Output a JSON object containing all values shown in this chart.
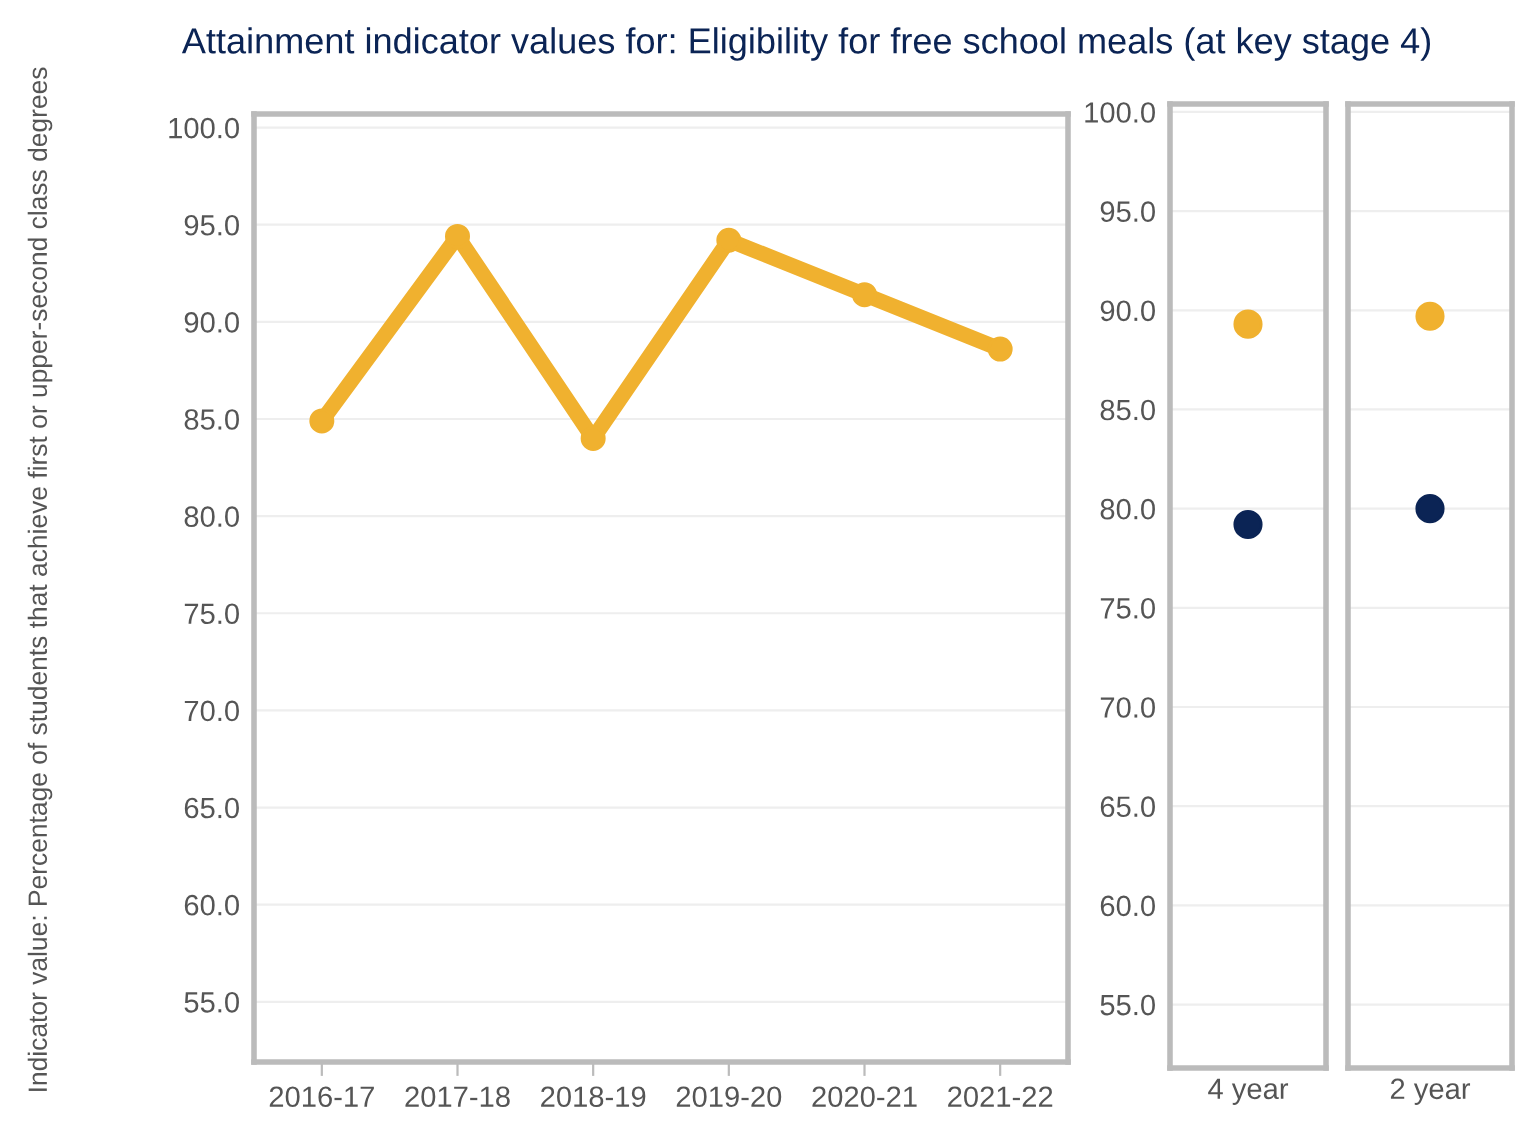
{
  "chart_data": [
    {
      "type": "line",
      "title": "Attainment indicator values for: Eligibility for free school meals (at key stage 4)",
      "ylabel": "Indicator value: Percentage of students that achieve first or upper-second class degrees",
      "categories": [
        "2016-17",
        "2017-18",
        "2018-19",
        "2019-20",
        "2020-21",
        "2021-22"
      ],
      "series": [
        {
          "color": "#f0b12f",
          "values": [
            84.9,
            94.4,
            84.0,
            94.2,
            91.4,
            88.6
          ]
        }
      ],
      "marker": "circle",
      "line_style": "solid",
      "grid": "y",
      "legend": false,
      "ylim": [
        51.9,
        100.7
      ],
      "yticks": [
        {
          "value": 55,
          "label": "55.0"
        },
        {
          "value": 60,
          "label": "60.0"
        },
        {
          "value": 65,
          "label": "65.0"
        },
        {
          "value": 70,
          "label": "70.0"
        },
        {
          "value": 75,
          "label": "75.0"
        },
        {
          "value": 80,
          "label": "80.0"
        },
        {
          "value": 85,
          "label": "85.0"
        },
        {
          "value": 90,
          "label": "90.0"
        },
        {
          "value": 95,
          "label": "95.0"
        },
        {
          "value": 100,
          "label": "100.0"
        }
      ]
    },
    {
      "type": "scatter",
      "categories": [
        "4 year"
      ],
      "series": [
        {
          "color": "#f0b12f",
          "values": [
            89.3
          ]
        },
        {
          "color": "#0b2455",
          "values": [
            79.2
          ]
        }
      ],
      "marker": "circle",
      "grid": "y",
      "legend": false,
      "ylim": [
        51.8,
        100.4
      ],
      "yticks": [
        {
          "value": 55,
          "label": "55.0"
        },
        {
          "value": 60,
          "label": "60.0"
        },
        {
          "value": 65,
          "label": "65.0"
        },
        {
          "value": 70,
          "label": "70.0"
        },
        {
          "value": 75,
          "label": "75.0"
        },
        {
          "value": 80,
          "label": "80.0"
        },
        {
          "value": 85,
          "label": "85.0"
        },
        {
          "value": 90,
          "label": "90.0"
        },
        {
          "value": 95,
          "label": "95.0"
        },
        {
          "value": 100,
          "label": "100.0"
        }
      ]
    },
    {
      "type": "scatter",
      "categories": [
        "2 year"
      ],
      "series": [
        {
          "color": "#f0b12f",
          "values": [
            89.7
          ]
        },
        {
          "color": "#0b2455",
          "values": [
            80.0
          ]
        }
      ],
      "marker": "circle",
      "grid": "y",
      "legend": false,
      "tick_labels": "x",
      "ylim": [
        51.8,
        100.4
      ],
      "yticks": [
        {
          "value": 55,
          "label": null
        },
        {
          "value": 60,
          "label": null
        },
        {
          "value": 65,
          "label": null
        },
        {
          "value": 70,
          "label": null
        },
        {
          "value": 75,
          "label": null
        },
        {
          "value": 80,
          "label": null
        },
        {
          "value": 85,
          "label": null
        },
        {
          "value": 90,
          "label": null
        },
        {
          "value": 95,
          "label": null
        },
        {
          "value": 100,
          "label": null
        }
      ]
    }
  ]
}
